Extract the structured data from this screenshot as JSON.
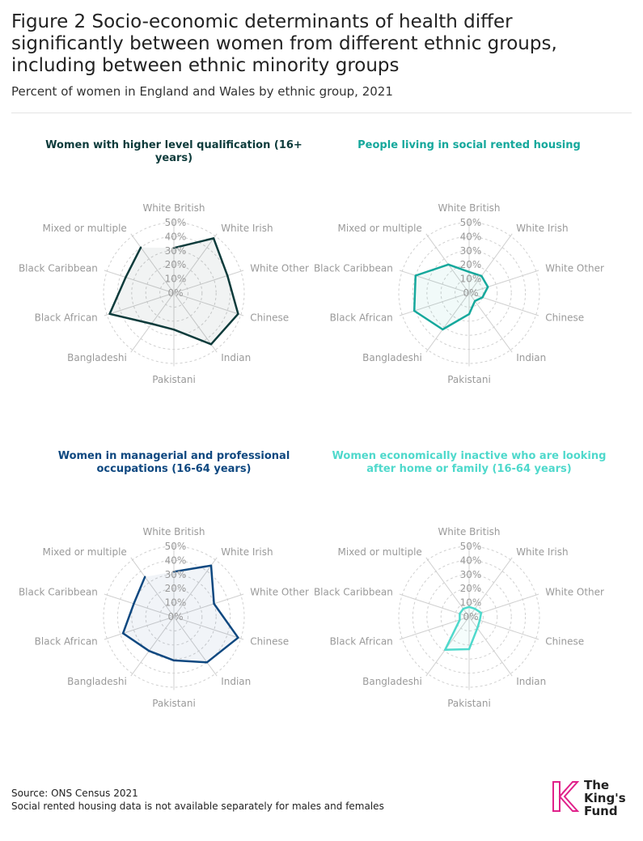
{
  "title": "Figure 2 Socio-economic determinants of health differ significantly between women from different ethnic groups, including between ethnic minority groups",
  "subtitle": "Percent of women in England and Wales by ethnic group, 2021",
  "footer": {
    "source": "Source: ONS Census 2021",
    "note": "Social rented housing data is not available separately for males and females"
  },
  "logo": {
    "line1": "The",
    "line2": "King's",
    "line3": "Fund"
  },
  "colors": {
    "grid": "#d0d0d0",
    "axis_label": "#9a9a9a",
    "brand": "#e0218a"
  },
  "chart_data": [
    {
      "type": "radar",
      "title": "Women with higher level qualification (16+ years)",
      "color": "#0d3b3b",
      "categories": [
        "White British",
        "White Irish",
        "White Other",
        "Chinese",
        "Indian",
        "Pakistani",
        "Bangladeshi",
        "Black African",
        "Black Caribbean",
        "Mixed or multiple"
      ],
      "tick_labels": [
        "0%",
        "10%",
        "20%",
        "30%",
        "40%",
        "50%"
      ],
      "rlim": [
        0,
        50
      ],
      "values": [
        32,
        48,
        40,
        48,
        45,
        26,
        27,
        48,
        36,
        40
      ],
      "closed": false
    },
    {
      "type": "radar",
      "title": "People living in social rented housing",
      "color": "#15a89c",
      "categories": [
        "White British",
        "White Irish",
        "White Other",
        "Chinese",
        "Indian",
        "Pakistani",
        "Bangladeshi",
        "Black African",
        "Black Caribbean",
        "Mixed or multiple"
      ],
      "tick_labels": [
        "0%",
        "10%",
        "20%",
        "30%",
        "40%",
        "50%"
      ],
      "rlim": [
        0,
        50
      ],
      "values": [
        15,
        15,
        14,
        10,
        7,
        15,
        32,
        41,
        40,
        25
      ],
      "closed": true
    },
    {
      "type": "radar",
      "title": "Women in managerial and professional occupations (16-64 years)",
      "color": "#0e4880",
      "categories": [
        "White British",
        "White Irish",
        "White Other",
        "Chinese",
        "Indian",
        "Pakistani",
        "Bangladeshi",
        "Black African",
        "Black Caribbean",
        "Mixed or multiple"
      ],
      "tick_labels": [
        "0%",
        "10%",
        "20%",
        "30%",
        "40%",
        "50%"
      ],
      "rlim": [
        0,
        50
      ],
      "values": [
        32,
        45,
        30,
        48,
        40,
        31,
        30,
        38,
        30,
        35
      ],
      "closed": false
    },
    {
      "type": "radar",
      "title": "Women economically inactive who are looking after home or family (16-64 years)",
      "color": "#4fd9cc",
      "categories": [
        "White British",
        "White Irish",
        "White Other",
        "Chinese",
        "Indian",
        "Pakistani",
        "Bangladeshi",
        "Black African",
        "Black Caribbean",
        "Mixed or multiple"
      ],
      "tick_labels": [
        "0%",
        "10%",
        "20%",
        "30%",
        "40%",
        "50%"
      ],
      "rlim": [
        0,
        50
      ],
      "values": [
        7,
        7,
        9,
        8,
        10,
        23,
        29,
        7,
        7,
        7
      ],
      "closed": true
    }
  ]
}
